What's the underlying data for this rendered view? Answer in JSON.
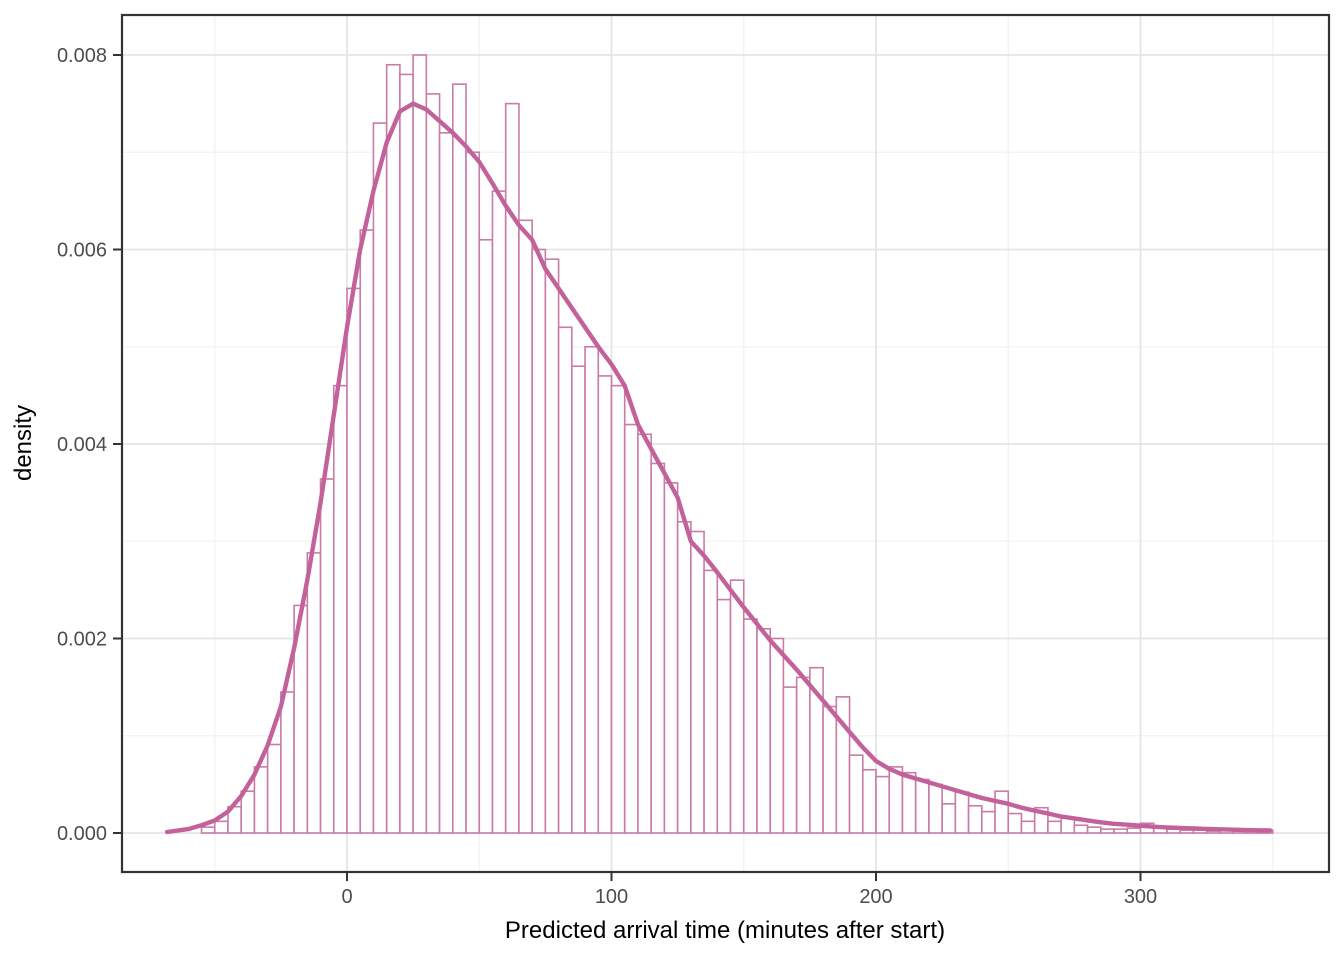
{
  "chart_data": {
    "type": "histogram_with_density",
    "title": "",
    "xlabel": "Predicted arrival time (minutes after start)",
    "ylabel": "density",
    "grid": "on",
    "legend": "none",
    "xlim": [
      -85,
      371
    ],
    "ylim": [
      -0.0004,
      0.00841
    ],
    "x_axis": {
      "ticks": [
        {
          "value": 0,
          "label": "0"
        },
        {
          "value": 100,
          "label": "100"
        },
        {
          "value": 200,
          "label": "200"
        },
        {
          "value": 300,
          "label": "300"
        }
      ],
      "minor_gridlines": [
        -50,
        50,
        150,
        250,
        350
      ]
    },
    "y_axis": {
      "ticks": [
        {
          "value": 0.0,
          "label": "0.000"
        },
        {
          "value": 0.002,
          "label": "0.002"
        },
        {
          "value": 0.004,
          "label": "0.004"
        },
        {
          "value": 0.006,
          "label": "0.006"
        },
        {
          "value": 0.008,
          "label": "0.008"
        }
      ],
      "minor_gridlines": [
        0.001,
        0.003,
        0.005,
        0.007
      ]
    },
    "histogram": {
      "bin_start": -55,
      "bin_width": 5,
      "values": [
        6e-05,
        0.00012,
        0.00027,
        0.00043,
        0.00068,
        0.00091,
        0.00145,
        0.00234,
        0.00288,
        0.00364,
        0.0046,
        0.0056,
        0.0062,
        0.0073,
        0.0079,
        0.0078,
        0.008,
        0.0076,
        0.0072,
        0.0077,
        0.007,
        0.0061,
        0.0066,
        0.0075,
        0.0063,
        0.006,
        0.0059,
        0.0052,
        0.0048,
        0.005,
        0.0047,
        0.0046,
        0.0042,
        0.0041,
        0.0038,
        0.0036,
        0.0032,
        0.0031,
        0.0027,
        0.0024,
        0.0026,
        0.0022,
        0.0021,
        0.002,
        0.0015,
        0.0016,
        0.0017,
        0.0013,
        0.0014,
        0.0008,
        0.00065,
        0.00058,
        0.00068,
        0.00062,
        0.00055,
        0.0005,
        0.0003,
        0.00042,
        0.00028,
        0.00022,
        0.00043,
        0.0002,
        0.00012,
        0.00026,
        0.00012,
        0.00016,
        8e-05,
        6e-05,
        4e-05,
        4e-05,
        5e-05,
        0.0001,
        6e-05,
        4e-05,
        3e-05,
        3e-05,
        2e-05,
        3e-05,
        2e-05,
        2e-05,
        3e-05
      ]
    },
    "density_curve": [
      [
        -68,
        1e-05
      ],
      [
        -60,
        4e-05
      ],
      [
        -55,
        8e-05
      ],
      [
        -50,
        0.00013
      ],
      [
        -45,
        0.00022
      ],
      [
        -40,
        0.00038
      ],
      [
        -35,
        0.0006
      ],
      [
        -30,
        0.0009
      ],
      [
        -25,
        0.0013
      ],
      [
        -20,
        0.0019
      ],
      [
        -15,
        0.0026
      ],
      [
        -10,
        0.0034
      ],
      [
        -5,
        0.0043
      ],
      [
        0,
        0.0052
      ],
      [
        5,
        0.006
      ],
      [
        10,
        0.0066
      ],
      [
        15,
        0.0071
      ],
      [
        20,
        0.00742
      ],
      [
        25,
        0.0075
      ],
      [
        30,
        0.00744
      ],
      [
        35,
        0.00732
      ],
      [
        40,
        0.0072
      ],
      [
        45,
        0.00706
      ],
      [
        50,
        0.0069
      ],
      [
        55,
        0.00668
      ],
      [
        60,
        0.00645
      ],
      [
        65,
        0.00625
      ],
      [
        70,
        0.0061
      ],
      [
        75,
        0.0058
      ],
      [
        80,
        0.0056
      ],
      [
        85,
        0.0054
      ],
      [
        90,
        0.0052
      ],
      [
        95,
        0.005
      ],
      [
        100,
        0.00482
      ],
      [
        105,
        0.0046
      ],
      [
        110,
        0.0042
      ],
      [
        115,
        0.00395
      ],
      [
        120,
        0.0037
      ],
      [
        125,
        0.00345
      ],
      [
        130,
        0.003
      ],
      [
        135,
        0.00285
      ],
      [
        140,
        0.00268
      ],
      [
        145,
        0.0025
      ],
      [
        150,
        0.00232
      ],
      [
        155,
        0.00215
      ],
      [
        160,
        0.00198
      ],
      [
        165,
        0.00183
      ],
      [
        170,
        0.00168
      ],
      [
        175,
        0.00152
      ],
      [
        180,
        0.00136
      ],
      [
        185,
        0.0012
      ],
      [
        190,
        0.00104
      ],
      [
        195,
        0.00088
      ],
      [
        200,
        0.00074
      ],
      [
        205,
        0.00066
      ],
      [
        210,
        0.0006
      ],
      [
        215,
        0.00056
      ],
      [
        220,
        0.00052
      ],
      [
        225,
        0.00048
      ],
      [
        230,
        0.00044
      ],
      [
        235,
        0.0004
      ],
      [
        240,
        0.00036
      ],
      [
        245,
        0.00033
      ],
      [
        250,
        0.0003
      ],
      [
        255,
        0.00026
      ],
      [
        260,
        0.00023
      ],
      [
        265,
        0.0002
      ],
      [
        270,
        0.00017
      ],
      [
        275,
        0.00015
      ],
      [
        280,
        0.00013
      ],
      [
        285,
        0.00011
      ],
      [
        290,
        9.5e-05
      ],
      [
        295,
        8.5e-05
      ],
      [
        300,
        7.5e-05
      ],
      [
        305,
        6.5e-05
      ],
      [
        310,
        5.8e-05
      ],
      [
        315,
        5.2e-05
      ],
      [
        320,
        4.7e-05
      ],
      [
        325,
        4.2e-05
      ],
      [
        330,
        3.8e-05
      ],
      [
        335,
        3.4e-05
      ],
      [
        340,
        3e-05
      ],
      [
        345,
        2.8e-05
      ],
      [
        349,
        2.7e-05
      ]
    ],
    "colors": {
      "bar_stroke": "#C97BA6",
      "bar_fill": "#FFFFFF",
      "curve": "#C2619A",
      "panel_border": "#333333",
      "grid_major": "#E5E5E5",
      "grid_minor": "#F2F2F2",
      "tick_mark": "#333333",
      "tick_label": "#4D4D4D",
      "axis_title": "#000000",
      "background": "#FFFFFF"
    }
  }
}
